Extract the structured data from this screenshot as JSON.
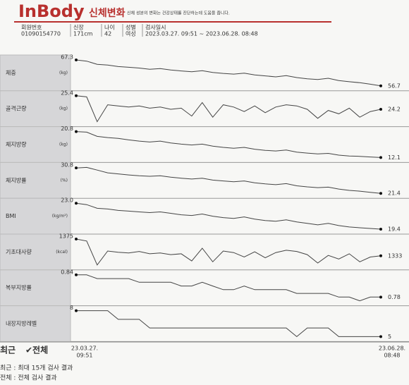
{
  "header": {
    "brand": "InBody",
    "title": "신체변화",
    "subtitle": "신체 성분의 변화는 건강상태를 진단하는데 도움을 줍니다."
  },
  "info": [
    {
      "label": "회원번호",
      "value": "01090154770"
    },
    {
      "label": "신장",
      "value": "171cm"
    },
    {
      "label": "나이",
      "value": "42"
    },
    {
      "label": "성별",
      "value": "여성"
    },
    {
      "label": "검사일시",
      "value": "2023.03.27. 09:51 ~ 2023.06.28. 08:48"
    }
  ],
  "charts": [
    {
      "label": "체중",
      "unit": "(kg)",
      "values": [
        67.3,
        66.8,
        65.5,
        65.2,
        64.6,
        64.3,
        64.0,
        63.5,
        63.8,
        63.2,
        62.8,
        62.5,
        62.9,
        62.2,
        61.8,
        61.5,
        61.9,
        61.2,
        60.8,
        60.4,
        60.9,
        60.1,
        59.6,
        59.3,
        59.8,
        58.9,
        58.4,
        58.0,
        57.4,
        56.7
      ]
    },
    {
      "label": "골격근량",
      "unit": "(kg)",
      "values": [
        25.4,
        25.3,
        23.1,
        24.6,
        24.5,
        24.4,
        24.5,
        24.3,
        24.4,
        24.2,
        24.3,
        23.6,
        24.8,
        23.5,
        24.6,
        24.4,
        24.0,
        24.5,
        23.9,
        24.4,
        24.6,
        24.5,
        24.2,
        23.4,
        24.1,
        23.8,
        24.3,
        23.5,
        24.0,
        24.2
      ]
    },
    {
      "label": "체지방량",
      "unit": "(kg)",
      "values": [
        20.8,
        20.6,
        19.2,
        18.8,
        18.5,
        18.0,
        17.6,
        17.3,
        17.6,
        17.0,
        16.6,
        16.3,
        16.6,
        15.9,
        15.5,
        15.2,
        15.5,
        14.9,
        14.5,
        14.3,
        14.6,
        13.9,
        13.6,
        13.3,
        13.5,
        12.9,
        12.6,
        12.5,
        12.3,
        12.1
      ]
    },
    {
      "label": "체지방률",
      "unit": "(%)",
      "values": [
        30.8,
        31.0,
        30.0,
        29.0,
        28.6,
        28.2,
        27.9,
        27.7,
        27.9,
        27.4,
        27.0,
        26.7,
        27.0,
        26.3,
        26.0,
        25.7,
        26.0,
        25.3,
        24.9,
        24.6,
        25.0,
        24.2,
        23.8,
        23.5,
        23.7,
        23.0,
        22.5,
        22.2,
        21.8,
        21.4
      ]
    },
    {
      "label": "BMI",
      "unit": "(kg/m²)",
      "values": [
        23.0,
        22.8,
        22.3,
        22.2,
        22.0,
        21.9,
        21.8,
        21.7,
        21.8,
        21.6,
        21.4,
        21.3,
        21.5,
        21.2,
        21.0,
        20.9,
        21.1,
        20.8,
        20.6,
        20.5,
        20.7,
        20.4,
        20.2,
        20.0,
        20.2,
        19.9,
        19.7,
        19.6,
        19.5,
        19.4
      ],
      "value_labels": [
        "23.0",
        null,
        null,
        null,
        null,
        null,
        null,
        null,
        null,
        null,
        null,
        null,
        null,
        null,
        null,
        null,
        null,
        null,
        null,
        null,
        null,
        null,
        null,
        null,
        null,
        null,
        null,
        null,
        null,
        "19.4"
      ]
    },
    {
      "label": "기초대사량",
      "unit": "(kcal)",
      "values": [
        1375,
        1370,
        1310,
        1345,
        1342,
        1340,
        1344,
        1338,
        1340,
        1336,
        1338,
        1320,
        1352,
        1318,
        1345,
        1341,
        1330,
        1343,
        1328,
        1341,
        1347,
        1344,
        1336,
        1315,
        1334,
        1325,
        1338,
        1318,
        1330,
        1333
      ]
    },
    {
      "label": "복부지방률",
      "unit": null,
      "values": [
        0.84,
        0.84,
        0.83,
        0.83,
        0.83,
        0.83,
        0.82,
        0.82,
        0.82,
        0.82,
        0.81,
        0.81,
        0.82,
        0.81,
        0.8,
        0.8,
        0.81,
        0.8,
        0.8,
        0.8,
        0.8,
        0.79,
        0.79,
        0.79,
        0.79,
        0.78,
        0.78,
        0.77,
        0.78,
        0.78
      ]
    },
    {
      "label": "내장지방레벨",
      "unit": null,
      "values": [
        8,
        8,
        8,
        8,
        7,
        7,
        7,
        6,
        6,
        6,
        6,
        6,
        6,
        6,
        6,
        6,
        6,
        6,
        6,
        6,
        6,
        5,
        6,
        6,
        6,
        5,
        5,
        5,
        5,
        5
      ]
    }
  ],
  "footer": {
    "tabs": [
      "최근",
      "✔전체"
    ],
    "start_date": [
      "23.03.27.",
      "09:51"
    ],
    "end_date": [
      "23.06.28.",
      "08:48"
    ],
    "notes": [
      "최근 : 최대 15개 검사 결과",
      "전체 : 전체 검사 결과"
    ]
  }
}
